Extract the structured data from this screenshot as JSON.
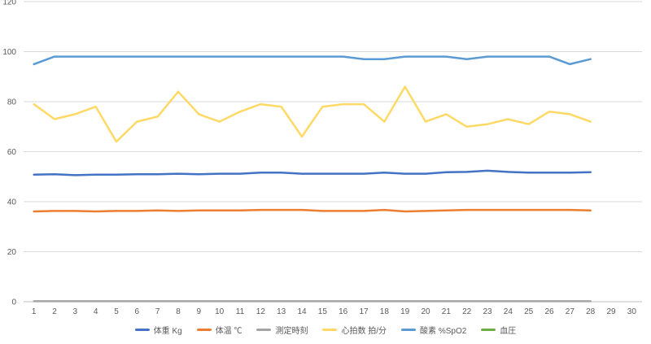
{
  "chart_data": {
    "type": "line",
    "categories": [
      "1",
      "2",
      "3",
      "4",
      "5",
      "6",
      "7",
      "8",
      "9",
      "10",
      "11",
      "12",
      "13",
      "14",
      "15",
      "16",
      "17",
      "18",
      "19",
      "20",
      "21",
      "22",
      "23",
      "24",
      "25",
      "26",
      "27",
      "28",
      "29",
      "30"
    ],
    "ylim": [
      0,
      120
    ],
    "yticks": [
      0,
      20,
      40,
      60,
      80,
      100,
      120
    ],
    "grid": true,
    "legend_position": "bottom",
    "series": [
      {
        "name": "体重 Kg",
        "color": "#4472C4",
        "values": [
          50.8,
          51.0,
          50.6,
          50.8,
          50.8,
          51.0,
          51.0,
          51.2,
          51.0,
          51.2,
          51.2,
          51.6,
          51.6,
          51.2,
          51.2,
          51.2,
          51.2,
          51.6,
          51.2,
          51.2,
          51.8,
          51.9,
          52.4,
          51.9,
          51.6,
          51.6,
          51.6,
          51.8,
          null,
          null
        ]
      },
      {
        "name": "体温 ℃",
        "color": "#ED7D31",
        "values": [
          36.1,
          36.3,
          36.3,
          36.1,
          36.3,
          36.3,
          36.5,
          36.3,
          36.5,
          36.5,
          36.5,
          36.7,
          36.7,
          36.7,
          36.3,
          36.3,
          36.3,
          36.7,
          36.1,
          36.3,
          36.5,
          36.7,
          36.7,
          36.7,
          36.7,
          36.7,
          36.7,
          36.5,
          null,
          null
        ]
      },
      {
        "name": "測定時刻",
        "color": "#A5A5A5",
        "values": [
          0.2,
          0.2,
          0.2,
          0.2,
          0.2,
          0.2,
          0.2,
          0.2,
          0.2,
          0.2,
          0.2,
          0.2,
          0.2,
          0.2,
          0.2,
          0.2,
          0.2,
          0.2,
          0.2,
          0.2,
          0.2,
          0.2,
          0.2,
          0.2,
          0.2,
          0.2,
          0.2,
          0.2,
          null,
          null
        ]
      },
      {
        "name": "心拍数 拍/分",
        "color": "#FFD966",
        "values": [
          79,
          73,
          75,
          78,
          64,
          72,
          74,
          84,
          75,
          72,
          76,
          79,
          78,
          66,
          78,
          79,
          79,
          72,
          86,
          72,
          75,
          70,
          71,
          73,
          71,
          76,
          75,
          72,
          null,
          null
        ]
      },
      {
        "name": "酸素 %SpO2",
        "color": "#5B9BD5",
        "values": [
          95,
          98,
          98,
          98,
          98,
          98,
          98,
          98,
          98,
          98,
          98,
          98,
          98,
          98,
          98,
          98,
          97,
          97,
          98,
          98,
          98,
          97,
          98,
          98,
          98,
          98,
          95,
          97,
          null,
          null
        ]
      },
      {
        "name": "血圧",
        "color": "#70AD47",
        "values": [
          null,
          null,
          null,
          null,
          null,
          null,
          null,
          null,
          null,
          null,
          null,
          null,
          null,
          null,
          null,
          null,
          null,
          null,
          null,
          null,
          null,
          null,
          null,
          null,
          null,
          null,
          null,
          null,
          null,
          null
        ]
      }
    ]
  }
}
